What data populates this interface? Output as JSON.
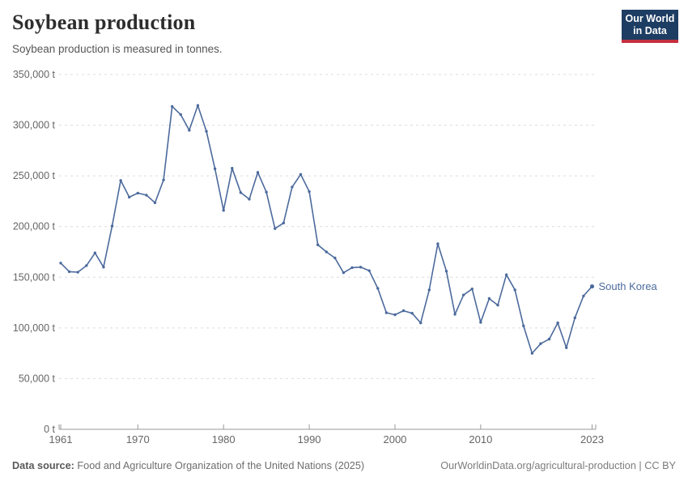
{
  "header": {
    "title": "Soybean production",
    "subtitle": "Soybean production is measured in tonnes.",
    "logo": {
      "line1": "Our World",
      "line2": "in Data"
    }
  },
  "chart_data": {
    "type": "line",
    "title": "Soybean production",
    "ylabel": "",
    "xlabel": "",
    "unit": "t",
    "grid": "horizontal-dashed",
    "legend_position": "end-of-line",
    "xlim": [
      1961,
      2023
    ],
    "ylim": [
      0,
      350000
    ],
    "x_ticks": [
      1961,
      1970,
      1980,
      1990,
      2000,
      2010,
      2023
    ],
    "y_ticks": [
      0,
      50000,
      100000,
      150000,
      200000,
      250000,
      300000,
      350000
    ],
    "series": [
      {
        "name": "South Korea",
        "color": "#4c6a9c",
        "x": [
          1961,
          1962,
          1963,
          1964,
          1965,
          1966,
          1967,
          1968,
          1969,
          1970,
          1971,
          1972,
          1973,
          1974,
          1975,
          1976,
          1977,
          1978,
          1979,
          1980,
          1981,
          1982,
          1983,
          1984,
          1985,
          1986,
          1987,
          1988,
          1989,
          1990,
          1991,
          1992,
          1993,
          1994,
          1995,
          1996,
          1997,
          1998,
          1999,
          2000,
          2001,
          2002,
          2003,
          2004,
          2005,
          2006,
          2007,
          2008,
          2009,
          2010,
          2011,
          2012,
          2013,
          2014,
          2015,
          2016,
          2017,
          2018,
          2019,
          2020,
          2021,
          2022,
          2023
        ],
        "values": [
          164000,
          155500,
          155000,
          161500,
          174000,
          160000,
          200500,
          245500,
          229000,
          233000,
          231000,
          223500,
          246000,
          318500,
          310500,
          295000,
          319500,
          294000,
          257000,
          216000,
          257500,
          233500,
          227000,
          253500,
          234000,
          198000,
          203500,
          239000,
          251500,
          234500,
          182000,
          175000,
          169000,
          154500,
          159500,
          160000,
          156500,
          139000,
          115000,
          113000,
          117000,
          114500,
          105000,
          137500,
          183000,
          156000,
          113500,
          132500,
          138500,
          105500,
          129000,
          122500,
          152500,
          137500,
          102000,
          75000,
          84500,
          89000,
          105000,
          80500,
          110000,
          131500,
          141000
        ]
      }
    ]
  },
  "footer": {
    "source_label": "Data source:",
    "source_text": "Food and Agriculture Organization of the United Nations (2025)",
    "link_text": "OurWorldinData.org/agricultural-production | CC BY"
  },
  "colors": {
    "line": "#4c6a9c",
    "grid": "#dcdcdc",
    "axis": "#999999",
    "tick_label": "#666666",
    "logo_navy": "#1d3d63",
    "logo_red": "#c5303e"
  }
}
